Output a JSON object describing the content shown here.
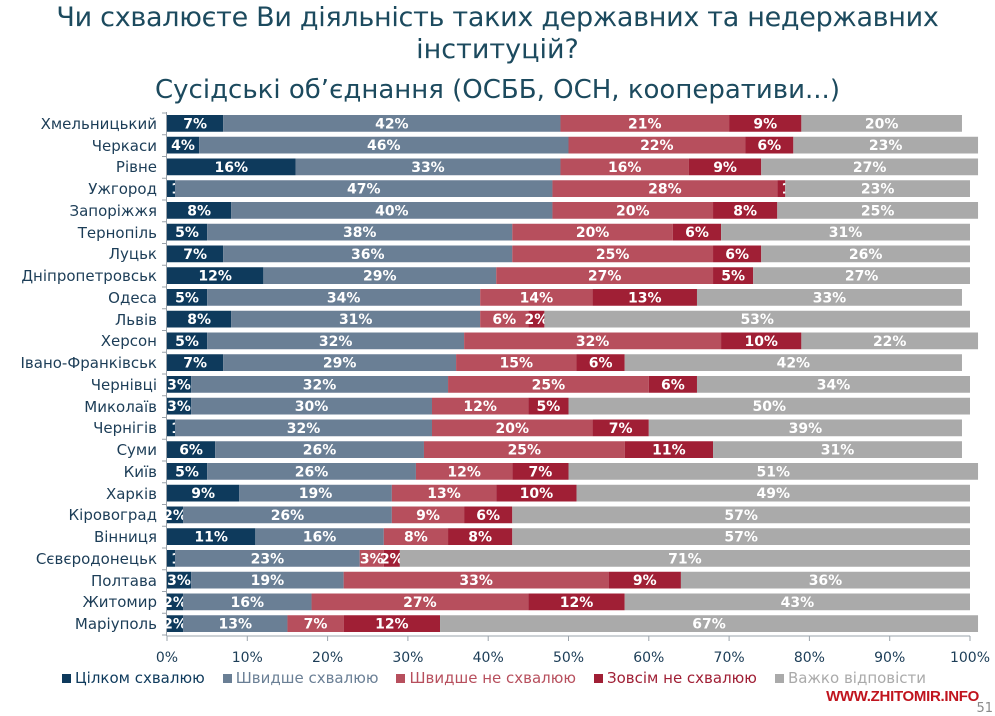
{
  "chart_data": {
    "type": "bar",
    "orientation": "horizontal",
    "stacked": true,
    "title": "Чи схвалюєте Ви діяльність таких державних та недержавних інституцій?",
    "title_line1": "Чи схвалюєте Ви діяльність таких державних та недержавних",
    "title_line2": "інституцій?",
    "subtitle": "Сусідські об’єднання (ОСББ, ОСН, кооперативи...)",
    "xlabel": "",
    "ylabel": "",
    "xlim": [
      0,
      100
    ],
    "xticks": [
      "0%",
      "10%",
      "20%",
      "30%",
      "40%",
      "50%",
      "60%",
      "70%",
      "80%",
      "90%",
      "100%"
    ],
    "legend_position": "bottom",
    "categories": [
      "Хмельницький",
      "Черкаси",
      "Рівне",
      "Ужгород",
      "Запоріжжя",
      "Тернопіль",
      "Луцьк",
      "Дніпропетровськ",
      "Одеса",
      "Львів",
      "Херсон",
      "Івано-Франківськ",
      "Чернівці",
      "Миколаїв",
      "Чернігів",
      "Суми",
      "Київ",
      "Харків",
      "Кіровоград",
      "Вінниця",
      "Сєвєродонецьк",
      "Полтава",
      "Житомир",
      "Маріуполь"
    ],
    "series": [
      {
        "name": "Цілком схвалюю",
        "color": "#0e3a5c",
        "values": [
          7,
          4,
          16,
          1,
          8,
          5,
          7,
          12,
          5,
          8,
          5,
          7,
          3,
          3,
          1,
          6,
          5,
          9,
          2,
          11,
          1,
          3,
          2,
          2
        ]
      },
      {
        "name": "Швидше схвалюю",
        "color": "#6a7f95",
        "values": [
          42,
          46,
          33,
          47,
          40,
          38,
          36,
          29,
          34,
          31,
          32,
          29,
          32,
          30,
          32,
          26,
          26,
          19,
          26,
          16,
          23,
          19,
          16,
          13
        ]
      },
      {
        "name": "Швидше не схвалюю",
        "color": "#b74f5d",
        "values": [
          21,
          22,
          16,
          28,
          20,
          20,
          25,
          27,
          14,
          6,
          32,
          15,
          25,
          12,
          20,
          25,
          12,
          13,
          9,
          8,
          3,
          33,
          27,
          7
        ]
      },
      {
        "name": "Зовсім не схвалюю",
        "color": "#a01f35",
        "values": [
          9,
          6,
          9,
          1,
          8,
          6,
          6,
          5,
          13,
          2,
          10,
          6,
          6,
          5,
          7,
          11,
          7,
          10,
          6,
          8,
          2,
          9,
          12,
          12
        ]
      },
      {
        "name": "Важко відповісти",
        "color": "#aaaaaa",
        "values": [
          20,
          23,
          27,
          23,
          25,
          31,
          26,
          27,
          33,
          53,
          22,
          42,
          34,
          50,
          39,
          31,
          51,
          49,
          57,
          57,
          71,
          36,
          43,
          67
        ]
      }
    ]
  },
  "legend_text_colors": [
    "#0e3a5c",
    "#6a7f95",
    "#b74f5d",
    "#a01f35",
    "#aaaaaa"
  ],
  "footer": {
    "watermark": "WWW.ZHITOMIR.INFO",
    "page_number": "51"
  }
}
